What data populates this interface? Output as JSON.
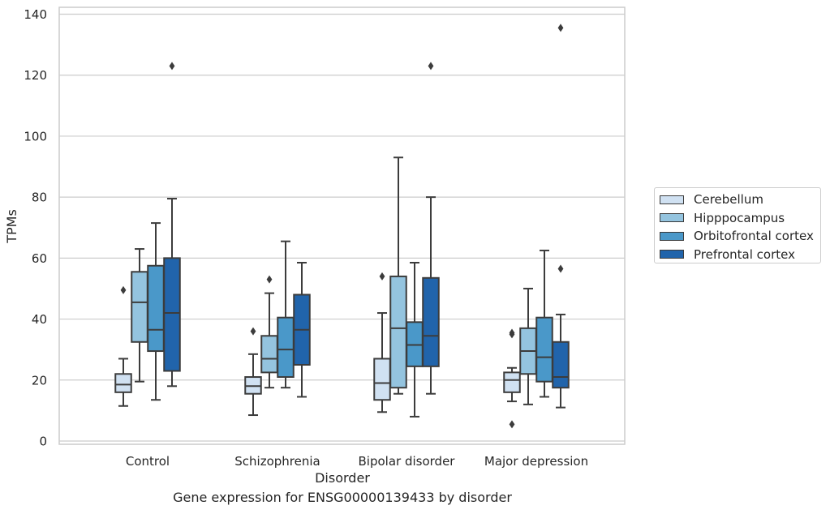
{
  "chart_data": {
    "type": "box",
    "xlabel": "Disorder",
    "ylabel": "TPMs",
    "caption": "Gene expression for ENSG00000139433 by disorder",
    "ylim": [
      -1,
      142
    ],
    "yticks": [
      0,
      20,
      40,
      60,
      80,
      100,
      120,
      140
    ],
    "grid": true,
    "legend_position": "right",
    "categories": [
      "Control",
      "Schizophrenia",
      "Bipolar disorder",
      "Major depression"
    ],
    "series": [
      {
        "name": "Cerebellum",
        "color": "#d0e1f2",
        "boxes": [
          {
            "whislo": 11.5,
            "q1": 16,
            "med": 18.5,
            "q3": 22,
            "whishi": 27,
            "fliers": [
              49.5
            ]
          },
          {
            "whislo": 8.5,
            "q1": 15.5,
            "med": 18,
            "q3": 21,
            "whishi": 28.5,
            "fliers": [
              36
            ]
          },
          {
            "whislo": 9.5,
            "q1": 13.5,
            "med": 19,
            "q3": 27,
            "whishi": 42,
            "fliers": [
              54
            ]
          },
          {
            "whislo": 13,
            "q1": 16,
            "med": 20,
            "q3": 22.5,
            "whishi": 24,
            "fliers": [
              5.5,
              35,
              35.5
            ]
          }
        ]
      },
      {
        "name": "Hipppocampus",
        "color": "#94c4df",
        "boxes": [
          {
            "whislo": 19.5,
            "q1": 32.5,
            "med": 45.5,
            "q3": 55.5,
            "whishi": 63,
            "fliers": []
          },
          {
            "whislo": 17.5,
            "q1": 22.5,
            "med": 27,
            "q3": 34.5,
            "whishi": 48.5,
            "fliers": [
              53
            ]
          },
          {
            "whislo": 15.5,
            "q1": 17.5,
            "med": 37,
            "q3": 54,
            "whishi": 93,
            "fliers": []
          },
          {
            "whislo": 12,
            "q1": 22,
            "med": 29.5,
            "q3": 37,
            "whishi": 50,
            "fliers": []
          }
        ]
      },
      {
        "name": "Orbitofrontal cortex",
        "color": "#4a98c9",
        "boxes": [
          {
            "whislo": 13.5,
            "q1": 29.5,
            "med": 36.5,
            "q3": 57.5,
            "whishi": 71.5,
            "fliers": []
          },
          {
            "whislo": 17.5,
            "q1": 21,
            "med": 30,
            "q3": 40.5,
            "whishi": 65.5,
            "fliers": []
          },
          {
            "whislo": 8,
            "q1": 24.5,
            "med": 31.5,
            "q3": 39,
            "whishi": 58.5,
            "fliers": []
          },
          {
            "whislo": 14.5,
            "q1": 19.5,
            "med": 27.5,
            "q3": 40.5,
            "whishi": 62.5,
            "fliers": []
          }
        ]
      },
      {
        "name": "Prefrontal cortex",
        "color": "#2164ab",
        "boxes": [
          {
            "whislo": 18,
            "q1": 23,
            "med": 42,
            "q3": 60,
            "whishi": 79.5,
            "fliers": [
              123
            ]
          },
          {
            "whislo": 14.5,
            "q1": 25,
            "med": 36.5,
            "q3": 48,
            "whishi": 58.5,
            "fliers": []
          },
          {
            "whislo": 15.5,
            "q1": 24.5,
            "med": 34.5,
            "q3": 53.5,
            "whishi": 80,
            "fliers": [
              123
            ]
          },
          {
            "whislo": 11,
            "q1": 17.5,
            "med": 21,
            "q3": 32.5,
            "whishi": 41.5,
            "fliers": [
              56.5,
              135.5
            ]
          }
        ]
      }
    ]
  }
}
